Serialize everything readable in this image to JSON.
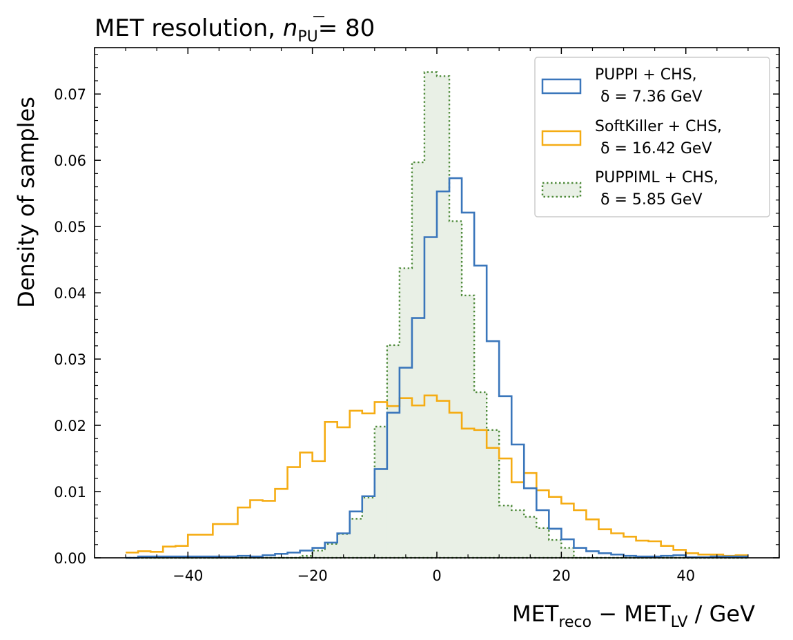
{
  "chart_data": {
    "type": "histogram",
    "title": "MET resolution, ",
    "title_math": {
      "symbol": "n",
      "subscript": "PU",
      "equals": "= 80"
    },
    "xlabel": {
      "main1": "MET",
      "sub1": "reco",
      "op": " − ",
      "main2": "MET",
      "sub2": "LV",
      "unit": " / GeV"
    },
    "ylabel": "Density of samples",
    "xlim": [
      -55,
      55
    ],
    "ylim": [
      0,
      0.077
    ],
    "x_ticks": [
      -40,
      -20,
      0,
      20,
      40
    ],
    "x_tick_labels": [
      "−40",
      "−20",
      "0",
      "20",
      "40"
    ],
    "y_ticks": [
      0,
      0.01,
      0.02,
      0.03,
      0.04,
      0.05,
      0.06,
      0.07
    ],
    "y_tick_labels": [
      "0.00",
      "0.01",
      "0.02",
      "0.03",
      "0.04",
      "0.05",
      "0.06",
      "0.07"
    ],
    "grid": false,
    "legend_position": "top-right",
    "bin_edges": [
      -50,
      -48,
      -46,
      -44,
      -42,
      -40,
      -38,
      -36,
      -34,
      -32,
      -30,
      -28,
      -26,
      -24,
      -22,
      -20,
      -18,
      -16,
      -14,
      -12,
      -10,
      -8,
      -6,
      -4,
      -2,
      0,
      2,
      4,
      6,
      8,
      10,
      12,
      14,
      16,
      18,
      20,
      22,
      24,
      26,
      28,
      30,
      32,
      34,
      36,
      38,
      40,
      42,
      44,
      46,
      48,
      50
    ],
    "series": [
      {
        "name": "PUPPI + CHS,",
        "delta_line": "δ = 7.36 GeV",
        "style": "step",
        "color": "#3a76bb",
        "values": [
          0,
          0.0002,
          0.0002,
          0.0002,
          0.0002,
          0.0002,
          0.0002,
          0.0002,
          0.0002,
          0.0003,
          0.0002,
          0.0004,
          0.0006,
          0.0008,
          0.0011,
          0.0015,
          0.0023,
          0.0037,
          0.007,
          0.0093,
          0.0134,
          0.0219,
          0.0287,
          0.0362,
          0.0484,
          0.0553,
          0.0573,
          0.0521,
          0.0441,
          0.0327,
          0.0244,
          0.0171,
          0.0105,
          0.0072,
          0.0044,
          0.0028,
          0.0015,
          0.001,
          0.0007,
          0.0005,
          0.0003,
          0.0002,
          0.0002,
          0.0003,
          0.0004,
          0.0001,
          0.0001,
          0.0002,
          0.0002,
          0.0002
        ]
      },
      {
        "name": "SoftKiller + CHS,",
        "delta_line": "δ = 16.42 GeV",
        "style": "step",
        "color": "#f5ac13",
        "values": [
          0.0008,
          0.001,
          0.0009,
          0.0017,
          0.0018,
          0.0035,
          0.0035,
          0.0051,
          0.0051,
          0.0076,
          0.0087,
          0.0086,
          0.0104,
          0.0137,
          0.0159,
          0.0146,
          0.0205,
          0.0197,
          0.0222,
          0.0218,
          0.0235,
          0.0229,
          0.0241,
          0.023,
          0.0245,
          0.0237,
          0.0219,
          0.0195,
          0.0193,
          0.0166,
          0.015,
          0.0114,
          0.0128,
          0.0102,
          0.0092,
          0.0082,
          0.0072,
          0.0058,
          0.0043,
          0.0037,
          0.0032,
          0.0026,
          0.0025,
          0.0018,
          0.0012,
          0.0007,
          0.0005,
          0.0005,
          0.0003,
          0.0004
        ]
      },
      {
        "name": "PUPPIML + CHS,",
        "delta_line": "δ = 5.85 GeV",
        "style": "filled-dotted",
        "color": "#4e8a3a",
        "fill": "#e9f0e6",
        "values": [
          0,
          0,
          0,
          0,
          0,
          0,
          0,
          0,
          0,
          0,
          0,
          0,
          0,
          0,
          0.0003,
          0.0011,
          0.0021,
          0.0036,
          0.0059,
          0.0091,
          0.0198,
          0.0321,
          0.0437,
          0.0597,
          0.0733,
          0.0727,
          0.0508,
          0.0396,
          0.025,
          0.0193,
          0.0079,
          0.0072,
          0.0062,
          0.0045,
          0.0027,
          0.0015,
          0,
          0,
          0,
          0,
          0,
          0,
          0,
          0,
          0,
          0,
          0,
          0,
          0,
          0
        ]
      }
    ]
  }
}
